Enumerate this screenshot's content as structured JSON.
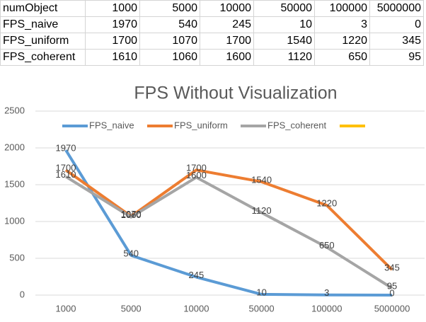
{
  "table": {
    "rows": [
      [
        "numObject",
        1000,
        5000,
        10000,
        50000,
        100000,
        5000000
      ],
      [
        "FPS_naive",
        1970,
        540,
        245,
        10,
        3,
        0
      ],
      [
        "FPS_uniform",
        1700,
        1070,
        1700,
        1540,
        1220,
        345
      ],
      [
        "FPS_coherent",
        1610,
        1060,
        1600,
        1120,
        650,
        95
      ]
    ]
  },
  "chart_data": {
    "type": "line",
    "title": "FPS Without Visualization",
    "categories": [
      "1000",
      "5000",
      "10000",
      "50000",
      "100000",
      "5000000"
    ],
    "series": [
      {
        "name": "FPS_naive",
        "color": "#5b9bd5",
        "values": [
          1970,
          540,
          245,
          10,
          3,
          0
        ]
      },
      {
        "name": "FPS_uniform",
        "color": "#ed7d31",
        "values": [
          1700,
          1070,
          1700,
          1540,
          1220,
          345
        ]
      },
      {
        "name": "FPS_coherent",
        "color": "#a5a5a5",
        "values": [
          1610,
          1060,
          1600,
          1120,
          650,
          95
        ]
      },
      {
        "name": null,
        "color": "#ffc000",
        "values": [
          null,
          null,
          null,
          null,
          null,
          null
        ]
      }
    ],
    "ylim": [
      0,
      2500
    ],
    "yticks": [
      0,
      500,
      1000,
      1500,
      2000,
      2500
    ],
    "grid": true,
    "legend": "top",
    "data_labels": true
  }
}
